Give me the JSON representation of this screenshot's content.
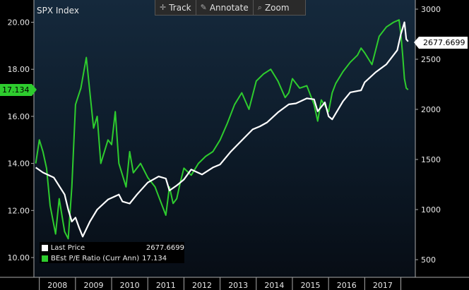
{
  "title": "SPX Index",
  "toolbar": {
    "track": "Track",
    "annotate": "Annotate",
    "zoom": "Zoom"
  },
  "legend": [
    {
      "label": "Last Price",
      "value": "2677.6699",
      "color": "#ffffff"
    },
    {
      "label": "BEst P/E Ratio (Curr Ann)",
      "value": "17.134",
      "color": "#2ecc2e"
    }
  ],
  "badges": {
    "price": "2677.6699",
    "pe": "17.134"
  },
  "colors": {
    "price": "#ffffff",
    "pe": "#2ecc2e"
  },
  "chart_data": {
    "type": "line",
    "x_axis": {
      "ticks": [
        "2008",
        "2009",
        "2010",
        "2011",
        "2012",
        "2013",
        "2014",
        "2015",
        "2016",
        "2017"
      ]
    },
    "y_left": {
      "label_ticks": [
        "10.00",
        "12.00",
        "14.00",
        "16.00",
        "18.00",
        "20.00"
      ],
      "range": [
        9.9,
        21.0
      ]
    },
    "y_right": {
      "label_ticks": [
        "500",
        "1000",
        "1500",
        "2000",
        "2500",
        "3000"
      ],
      "range": [
        500,
        3050
      ]
    },
    "grid": false,
    "legend_position": "bottom-left",
    "series": [
      {
        "name": "Last Price",
        "axis": "right",
        "x": [
          2007.9,
          2008.1,
          2008.4,
          2008.7,
          2008.8,
          2008.9,
          2009.0,
          2009.1,
          2009.2,
          2009.4,
          2009.6,
          2009.9,
          2010.2,
          2010.3,
          2010.5,
          2010.7,
          2011.0,
          2011.3,
          2011.5,
          2011.6,
          2011.8,
          2012.0,
          2012.2,
          2012.5,
          2012.8,
          2013.0,
          2013.3,
          2013.6,
          2013.9,
          2014.1,
          2014.3,
          2014.6,
          2014.9,
          2015.1,
          2015.4,
          2015.6,
          2015.7,
          2015.9,
          2016.0,
          2016.1,
          2016.4,
          2016.6,
          2016.9,
          2017.0,
          2017.3,
          2017.6,
          2017.9,
          2018.0,
          2018.1,
          2018.15,
          2018.2
        ],
        "y": [
          1420,
          1370,
          1320,
          1150,
          1000,
          880,
          920,
          820,
          730,
          880,
          1000,
          1100,
          1150,
          1080,
          1060,
          1150,
          1270,
          1330,
          1310,
          1190,
          1240,
          1300,
          1400,
          1350,
          1420,
          1450,
          1580,
          1690,
          1800,
          1830,
          1870,
          1970,
          2050,
          2060,
          2110,
          2100,
          1980,
          2070,
          1930,
          1900,
          2080,
          2170,
          2190,
          2270,
          2370,
          2450,
          2590,
          2750,
          2870,
          2700,
          2677.6699
        ]
      },
      {
        "name": "BEst P/E Ratio (Curr Ann)",
        "axis": "left",
        "x": [
          2007.9,
          2008.0,
          2008.1,
          2008.2,
          2008.3,
          2008.45,
          2008.55,
          2008.7,
          2008.8,
          2008.9,
          2009.0,
          2009.15,
          2009.3,
          2009.5,
          2009.6,
          2009.7,
          2009.9,
          2010.0,
          2010.1,
          2010.2,
          2010.4,
          2010.5,
          2010.6,
          2010.8,
          2011.0,
          2011.2,
          2011.3,
          2011.5,
          2011.6,
          2011.7,
          2011.8,
          2011.9,
          2012.0,
          2012.2,
          2012.4,
          2012.6,
          2012.8,
          2013.0,
          2013.2,
          2013.4,
          2013.6,
          2013.8,
          2014.0,
          2014.2,
          2014.4,
          2014.6,
          2014.8,
          2014.9,
          2015.0,
          2015.2,
          2015.4,
          2015.6,
          2015.7,
          2015.8,
          2016.0,
          2016.1,
          2016.2,
          2016.4,
          2016.6,
          2016.8,
          2016.9,
          2017.0,
          2017.2,
          2017.4,
          2017.6,
          2017.8,
          2017.95,
          2018.0,
          2018.05,
          2018.1,
          2018.15,
          2018.2
        ],
        "y": [
          14.0,
          15.0,
          14.5,
          13.8,
          12.2,
          11.0,
          12.5,
          11.1,
          10.8,
          13.0,
          16.5,
          17.2,
          18.5,
          15.5,
          16.0,
          14.0,
          15.0,
          14.8,
          16.2,
          14.0,
          13.0,
          14.5,
          13.6,
          14.0,
          13.4,
          13.0,
          12.6,
          11.8,
          13.0,
          12.3,
          12.5,
          13.2,
          13.8,
          13.5,
          14.0,
          14.3,
          14.5,
          15.0,
          15.7,
          16.5,
          17.0,
          16.3,
          17.5,
          17.8,
          18.0,
          17.5,
          16.8,
          17.0,
          17.6,
          17.2,
          17.3,
          16.5,
          15.8,
          16.7,
          16.2,
          17.0,
          17.4,
          17.9,
          18.3,
          18.6,
          18.9,
          18.7,
          18.2,
          19.4,
          19.8,
          20.0,
          20.1,
          19.5,
          18.6,
          17.6,
          17.2,
          17.134
        ]
      }
    ]
  }
}
